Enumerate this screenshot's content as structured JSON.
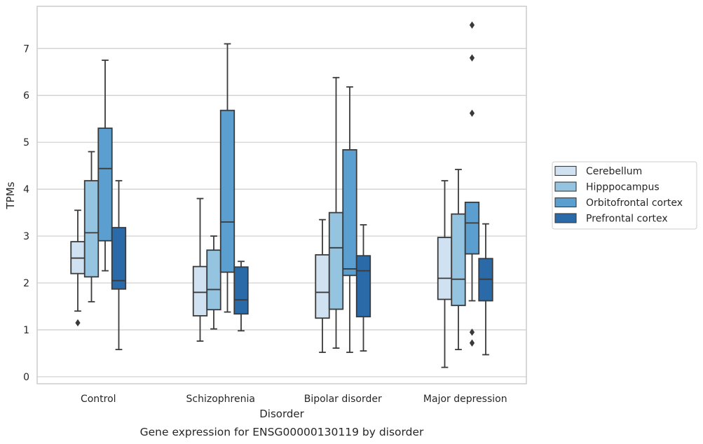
{
  "caption": "Gene expression for ENSG00000130119 by disorder",
  "chart_data": {
    "type": "box",
    "title": "",
    "xlabel": "Disorder",
    "ylabel": "TPMs",
    "ylim": [
      -0.15,
      7.9
    ],
    "yticks": [
      0,
      1,
      2,
      3,
      4,
      5,
      6,
      7
    ],
    "grid": "horizontal",
    "legend_position": "right",
    "categories": [
      "Control",
      "Schizophrenia",
      "Bipolar disorder",
      "Major depression"
    ],
    "series": [
      {
        "name": "Cerebellum",
        "color": "#d0e1f2",
        "boxes": [
          {
            "whisker_low": 1.4,
            "q1": 2.2,
            "median": 2.53,
            "q3": 2.88,
            "whisker_high": 3.55,
            "outliers": [
              1.15
            ]
          },
          {
            "whisker_low": 0.76,
            "q1": 1.3,
            "median": 1.8,
            "q3": 2.35,
            "whisker_high": 3.8,
            "outliers": []
          },
          {
            "whisker_low": 0.52,
            "q1": 1.25,
            "median": 1.8,
            "q3": 2.6,
            "whisker_high": 3.35,
            "outliers": []
          },
          {
            "whisker_low": 0.2,
            "q1": 1.65,
            "median": 2.1,
            "q3": 2.97,
            "whisker_high": 4.18,
            "outliers": []
          }
        ]
      },
      {
        "name": "Hipppocampus",
        "color": "#94c4df",
        "boxes": [
          {
            "whisker_low": 1.6,
            "q1": 2.13,
            "median": 3.07,
            "q3": 4.18,
            "whisker_high": 4.8,
            "outliers": []
          },
          {
            "whisker_low": 1.02,
            "q1": 1.43,
            "median": 1.86,
            "q3": 2.7,
            "whisker_high": 3.0,
            "outliers": []
          },
          {
            "whisker_low": 0.61,
            "q1": 1.44,
            "median": 2.75,
            "q3": 3.5,
            "whisker_high": 6.38,
            "outliers": []
          },
          {
            "whisker_low": 0.58,
            "q1": 1.52,
            "median": 2.08,
            "q3": 3.47,
            "whisker_high": 4.42,
            "outliers": []
          }
        ]
      },
      {
        "name": "Orbitofrontal cortex",
        "color": "#5a9fcf",
        "boxes": [
          {
            "whisker_low": 2.26,
            "q1": 2.9,
            "median": 4.44,
            "q3": 5.3,
            "whisker_high": 6.75,
            "outliers": []
          },
          {
            "whisker_low": 1.38,
            "q1": 2.23,
            "median": 3.3,
            "q3": 5.68,
            "whisker_high": 7.1,
            "outliers": []
          },
          {
            "whisker_low": 0.52,
            "q1": 2.16,
            "median": 2.3,
            "q3": 4.84,
            "whisker_high": 6.18,
            "outliers": []
          },
          {
            "whisker_low": 1.62,
            "q1": 2.62,
            "median": 3.28,
            "q3": 3.72,
            "whisker_high": 3.72,
            "outliers": [
              0.72,
              0.95,
              5.62,
              6.8,
              7.5
            ]
          }
        ]
      },
      {
        "name": "Prefrontal cortex",
        "color": "#2b6aa8",
        "boxes": [
          {
            "whisker_low": 0.58,
            "q1": 1.87,
            "median": 2.05,
            "q3": 3.18,
            "whisker_high": 4.18,
            "outliers": []
          },
          {
            "whisker_low": 0.98,
            "q1": 1.34,
            "median": 1.64,
            "q3": 2.34,
            "whisker_high": 2.46,
            "outliers": []
          },
          {
            "whisker_low": 0.55,
            "q1": 1.28,
            "median": 2.26,
            "q3": 2.58,
            "whisker_high": 3.24,
            "outliers": []
          },
          {
            "whisker_low": 0.47,
            "q1": 1.62,
            "median": 2.08,
            "q3": 2.52,
            "whisker_high": 3.26,
            "outliers": []
          }
        ]
      }
    ]
  }
}
